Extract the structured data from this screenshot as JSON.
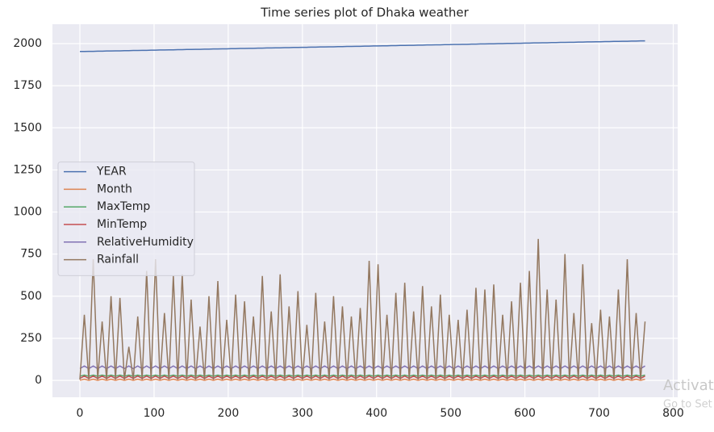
{
  "chart_data": {
    "type": "line",
    "title": "Time series plot of Dhaka weather",
    "x": [
      0,
      6,
      12,
      18,
      24,
      30,
      36,
      42,
      48,
      54,
      60,
      66,
      72,
      78,
      84,
      90,
      96,
      102,
      108,
      114,
      120,
      126,
      132,
      138,
      144,
      150,
      156,
      162,
      168,
      174,
      180,
      186,
      192,
      198,
      204,
      210,
      216,
      222,
      228,
      234,
      240,
      246,
      252,
      258,
      264,
      270,
      276,
      282,
      288,
      294,
      300,
      306,
      312,
      318,
      324,
      330,
      336,
      342,
      348,
      354,
      360,
      366,
      372,
      378,
      384,
      390,
      396,
      402,
      408,
      414,
      420,
      426,
      432,
      438,
      444,
      450,
      456,
      462,
      468,
      474,
      480,
      486,
      492,
      498,
      504,
      510,
      516,
      522,
      528,
      534,
      540,
      546,
      552,
      558,
      564,
      570,
      576,
      582,
      588,
      594,
      600,
      606,
      612,
      618,
      624,
      630,
      636,
      642,
      648,
      654,
      660,
      666,
      672,
      678,
      684,
      690,
      696,
      702,
      708,
      714,
      720,
      726,
      732,
      738,
      744,
      750,
      756,
      762
    ],
    "series": [
      {
        "name": "YEAR",
        "color": "#4c72b0",
        "values": [
          1953,
          1953,
          1954,
          1954,
          1955,
          1955,
          1956,
          1956,
          1957,
          1957,
          1958,
          1958,
          1959,
          1959,
          1960,
          1960,
          1961,
          1961,
          1962,
          1962,
          1963,
          1963,
          1964,
          1964,
          1965,
          1965,
          1966,
          1966,
          1967,
          1967,
          1968,
          1968,
          1969,
          1969,
          1970,
          1970,
          1971,
          1971,
          1972,
          1972,
          1973,
          1973,
          1974,
          1974,
          1975,
          1975,
          1976,
          1976,
          1977,
          1977,
          1978,
          1978,
          1979,
          1979,
          1980,
          1980,
          1981,
          1981,
          1982,
          1982,
          1983,
          1983,
          1984,
          1984,
          1985,
          1985,
          1986,
          1986,
          1987,
          1987,
          1988,
          1988,
          1989,
          1989,
          1990,
          1990,
          1991,
          1991,
          1992,
          1992,
          1993,
          1993,
          1994,
          1994,
          1995,
          1995,
          1996,
          1996,
          1997,
          1997,
          1998,
          1998,
          1999,
          1999,
          2000,
          2000,
          2001,
          2001,
          2002,
          2002,
          2003,
          2003,
          2004,
          2004,
          2005,
          2005,
          2006,
          2006,
          2007,
          2007,
          2008,
          2008,
          2009,
          2009,
          2010,
          2010,
          2011,
          2011,
          2012,
          2012,
          2013,
          2013,
          2014,
          2014,
          2015,
          2015,
          2016,
          2016
        ]
      },
      {
        "name": "Month",
        "color": "#dd8452",
        "values": [
          1,
          7,
          1,
          7,
          1,
          7,
          1,
          7,
          1,
          7,
          1,
          7,
          1,
          7,
          1,
          7,
          1,
          7,
          1,
          7,
          1,
          7,
          1,
          7,
          1,
          7,
          1,
          7,
          1,
          7,
          1,
          7,
          1,
          7,
          1,
          7,
          1,
          7,
          1,
          7,
          1,
          7,
          1,
          7,
          1,
          7,
          1,
          7,
          1,
          7,
          1,
          7,
          1,
          7,
          1,
          7,
          1,
          7,
          1,
          7,
          1,
          7,
          1,
          7,
          1,
          7,
          1,
          7,
          1,
          7,
          1,
          7,
          1,
          7,
          1,
          7,
          1,
          7,
          1,
          7,
          1,
          7,
          1,
          7,
          1,
          7,
          1,
          7,
          1,
          7,
          1,
          7,
          1,
          7,
          1,
          7,
          1,
          7,
          1,
          7,
          1,
          7,
          1,
          7,
          1,
          7,
          1,
          7,
          1,
          7,
          1,
          7,
          1,
          7,
          1,
          7,
          1,
          7,
          1,
          7,
          1,
          7,
          1,
          7,
          1,
          7,
          1,
          7
        ]
      },
      {
        "name": "MaxTemp",
        "color": "#55a868",
        "values": [
          25,
          32,
          25,
          32,
          25,
          32,
          25,
          32,
          25,
          32,
          25,
          32,
          25,
          32,
          25,
          32,
          25,
          32,
          25,
          32,
          25,
          32,
          25,
          32,
          25,
          32,
          25,
          32,
          25,
          32,
          25,
          32,
          25,
          32,
          25,
          32,
          25,
          32,
          25,
          32,
          25,
          32,
          25,
          32,
          25,
          32,
          25,
          32,
          25,
          32,
          25,
          32,
          25,
          32,
          25,
          32,
          25,
          32,
          25,
          32,
          25,
          32,
          25,
          32,
          25,
          32,
          25,
          32,
          25,
          32,
          25,
          32,
          25,
          32,
          25,
          32,
          25,
          32,
          25,
          32,
          25,
          32,
          25,
          32,
          25,
          32,
          25,
          32,
          25,
          32,
          25,
          32,
          25,
          32,
          25,
          32,
          25,
          32,
          25,
          32,
          25,
          32,
          25,
          32,
          25,
          32,
          25,
          32,
          25,
          32,
          25,
          32,
          25,
          32,
          25,
          32,
          25,
          32,
          25,
          32,
          25,
          32,
          25,
          32,
          25,
          32,
          25,
          32
        ]
      },
      {
        "name": "MinTemp",
        "color": "#c44e52",
        "values": [
          12,
          26,
          12,
          26,
          12,
          26,
          12,
          26,
          12,
          26,
          12,
          26,
          12,
          26,
          12,
          26,
          12,
          26,
          12,
          26,
          12,
          26,
          12,
          26,
          12,
          26,
          12,
          26,
          12,
          26,
          12,
          26,
          12,
          26,
          12,
          26,
          12,
          26,
          12,
          26,
          12,
          26,
          12,
          26,
          12,
          26,
          12,
          26,
          12,
          26,
          12,
          26,
          12,
          26,
          12,
          26,
          12,
          26,
          12,
          26,
          12,
          26,
          12,
          26,
          12,
          26,
          12,
          26,
          12,
          26,
          12,
          26,
          12,
          26,
          12,
          26,
          12,
          26,
          12,
          26,
          12,
          26,
          12,
          26,
          12,
          26,
          12,
          26,
          12,
          26,
          12,
          26,
          12,
          26,
          12,
          26,
          12,
          26,
          12,
          26,
          12,
          26,
          12,
          26,
          12,
          26,
          12,
          26,
          12,
          26,
          12,
          26,
          12,
          26,
          12,
          26,
          12,
          26,
          12,
          26,
          12,
          26,
          12,
          26,
          12,
          26,
          12,
          26
        ]
      },
      {
        "name": "RelativeHumidity",
        "color": "#8172b3",
        "values": [
          70,
          86,
          70,
          86,
          70,
          86,
          70,
          86,
          70,
          86,
          70,
          86,
          70,
          86,
          70,
          86,
          70,
          86,
          70,
          86,
          70,
          86,
          70,
          86,
          70,
          86,
          70,
          86,
          70,
          86,
          70,
          86,
          70,
          86,
          70,
          86,
          70,
          86,
          70,
          86,
          70,
          86,
          70,
          86,
          70,
          86,
          70,
          86,
          70,
          86,
          70,
          86,
          70,
          86,
          70,
          86,
          70,
          86,
          70,
          86,
          70,
          86,
          70,
          86,
          70,
          86,
          70,
          86,
          70,
          86,
          70,
          86,
          70,
          86,
          70,
          86,
          70,
          86,
          70,
          86,
          70,
          86,
          70,
          86,
          70,
          86,
          70,
          86,
          70,
          86,
          70,
          86,
          70,
          86,
          70,
          86,
          70,
          86,
          70,
          86,
          70,
          86,
          70,
          86,
          70,
          86,
          70,
          86,
          70,
          86,
          70,
          86,
          70,
          86,
          70,
          86,
          70,
          86,
          70,
          86,
          70,
          86,
          70,
          86,
          70,
          86,
          70,
          86
        ]
      },
      {
        "name": "Rainfall",
        "color": "#937860",
        "values": [
          5,
          390,
          5,
          720,
          5,
          350,
          5,
          500,
          5,
          490,
          5,
          200,
          5,
          380,
          5,
          650,
          5,
          720,
          5,
          400,
          5,
          620,
          5,
          630,
          5,
          480,
          5,
          320,
          5,
          500,
          5,
          590,
          5,
          360,
          5,
          510,
          5,
          470,
          5,
          380,
          5,
          620,
          5,
          410,
          5,
          630,
          5,
          440,
          5,
          530,
          5,
          330,
          5,
          520,
          5,
          350,
          5,
          500,
          5,
          440,
          5,
          380,
          5,
          430,
          5,
          710,
          5,
          690,
          5,
          390,
          5,
          520,
          5,
          580,
          5,
          410,
          5,
          560,
          5,
          440,
          5,
          510,
          5,
          390,
          5,
          360,
          5,
          420,
          5,
          550,
          5,
          540,
          5,
          570,
          5,
          390,
          5,
          470,
          5,
          580,
          5,
          650,
          5,
          840,
          5,
          540,
          5,
          480,
          5,
          750,
          5,
          400,
          5,
          690,
          5,
          340,
          5,
          420,
          5,
          380,
          5,
          540,
          5,
          720,
          5,
          400,
          5,
          350
        ]
      }
    ],
    "xlim": [
      -37,
      806
    ],
    "xticks": [
      0,
      100,
      200,
      300,
      400,
      500,
      600,
      700,
      800
    ],
    "ylim": [
      -100,
      2115
    ],
    "yticks": [
      0,
      250,
      500,
      750,
      1000,
      1250,
      1500,
      1750,
      2000
    ],
    "grid": true,
    "legend": "center left"
  },
  "overlay": {
    "line1": "Activate",
    "line2": "Go to Set"
  }
}
